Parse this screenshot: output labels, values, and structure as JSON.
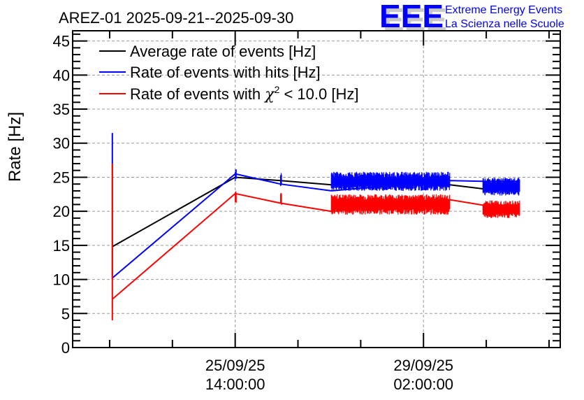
{
  "chart_data": {
    "type": "line",
    "title": "AREZ-01 2025-09-21--2025-09-30",
    "xlabel": "",
    "ylabel": "Rate [Hz]",
    "ylim": [
      0,
      46.5
    ],
    "yticks": [
      0,
      5,
      10,
      15,
      20,
      25,
      30,
      35,
      40,
      45
    ],
    "x_units": "hours relative to 25/09/25 14:00:00",
    "xlim": [
      -72.5,
      145
    ],
    "xticks": [
      {
        "x": 0,
        "label_line1": "25/09/25",
        "label_line2": "14:00:00"
      },
      {
        "x": 84,
        "label_line1": "29/09/25",
        "label_line2": "02:00:00"
      }
    ],
    "x_minor_tick_step_hours": 28,
    "grid": true,
    "legend": {
      "position": "top-left",
      "entries": [
        {
          "label": "Average rate of events [Hz]",
          "color": "#000000"
        },
        {
          "label": "Rate of events with hits [Hz]",
          "color": "#0000ff"
        },
        {
          "label_prefix": "Rate of events with ",
          "label_symbol": "χ",
          "label_sup": "2",
          "label_suffix": " < 10.0 [Hz]",
          "color": "#ff0000"
        }
      ]
    },
    "series": [
      {
        "name": "Average rate of events [Hz]",
        "color": "#000000",
        "points": [
          [
            -54.8,
            14.8
          ],
          [
            0,
            25.0
          ],
          [
            20.2,
            24.5
          ],
          [
            42.9,
            23.9
          ],
          [
            95.8,
            23.9
          ],
          [
            110.5,
            23.3
          ],
          [
            127,
            23.3
          ]
        ]
      },
      {
        "name": "Rate of events with hits [Hz]",
        "color": "#0000ff",
        "points": [
          [
            -54.8,
            31.5
          ],
          [
            -54.8,
            10.2
          ],
          [
            0,
            25.5
          ],
          [
            20.2,
            24.0
          ],
          [
            42.9,
            23.0
          ],
          [
            95.8,
            24.5
          ],
          [
            110.5,
            24.4
          ],
          [
            127,
            24.4
          ]
        ],
        "noisy_segments": [
          {
            "x_start": 0,
            "x_end": 0.6,
            "mean": 25.3,
            "amplitude": 1.0
          },
          {
            "x_start": 20.2,
            "x_end": 20.8,
            "mean": 24.6,
            "amplitude": 1.1
          },
          {
            "x_start": 42.9,
            "x_end": 95.8,
            "mean": 24.4,
            "amplitude": 1.4
          },
          {
            "x_start": 110.5,
            "x_end": 127,
            "mean": 23.6,
            "amplitude": 1.3
          }
        ]
      },
      {
        "name": "Rate of events with chi2 < 10.0 [Hz]",
        "color": "#ff0000",
        "points": [
          [
            -54.8,
            27.0
          ],
          [
            -54.8,
            4.0
          ],
          [
            -54.8,
            7.1
          ],
          [
            0,
            22.6
          ],
          [
            20.2,
            21.2
          ],
          [
            42.9,
            20.0
          ],
          [
            95.8,
            21.7
          ],
          [
            110.5,
            20.9
          ],
          [
            127,
            20.9
          ]
        ],
        "noisy_segments": [
          {
            "x_start": 0,
            "x_end": 0.6,
            "mean": 22.2,
            "amplitude": 1.0
          },
          {
            "x_start": 20.2,
            "x_end": 20.8,
            "mean": 21.8,
            "amplitude": 0.9
          },
          {
            "x_start": 42.9,
            "x_end": 95.8,
            "mean": 21.0,
            "amplitude": 1.5
          },
          {
            "x_start": 110.5,
            "x_end": 127,
            "mean": 20.3,
            "amplitude": 1.3
          }
        ]
      }
    ]
  },
  "logo": {
    "letters": "EEE",
    "line1": "Extreme Energy Events",
    "line2": "La Scienza nelle Scuole",
    "color": "#0000ff"
  }
}
